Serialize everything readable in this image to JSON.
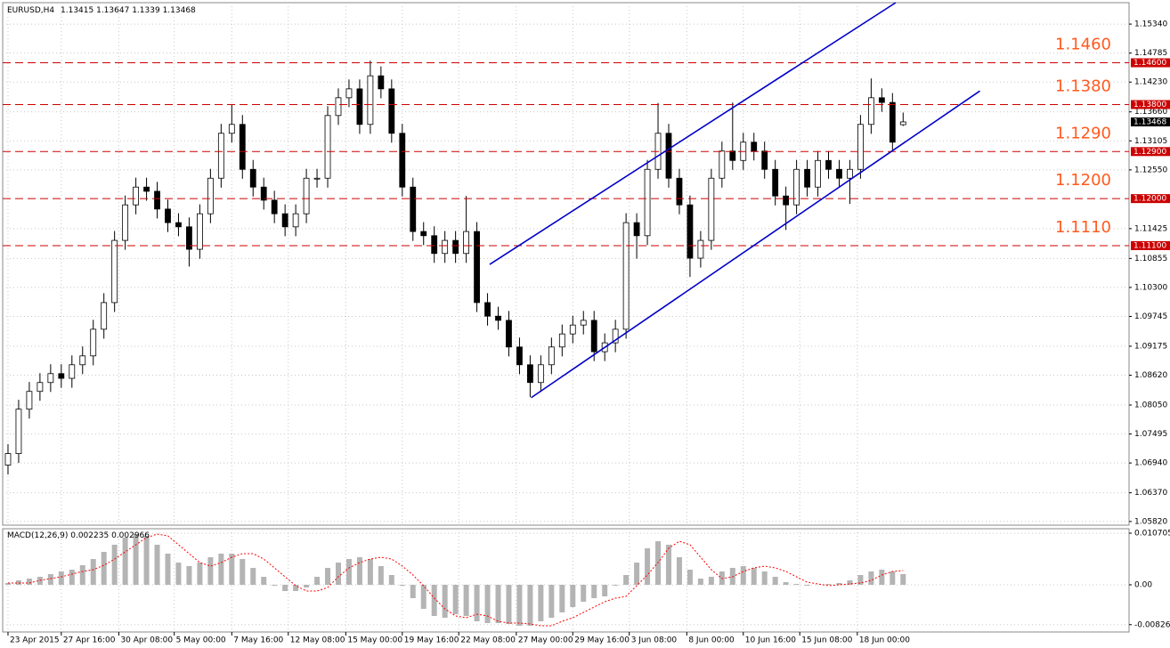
{
  "chart_data": [
    {
      "type": "candlestick",
      "title": "EURUSD,H4",
      "open": [
        1.069,
        1.0712,
        1.0797,
        1.0831,
        1.0848,
        1.0865,
        1.0856,
        1.0882,
        1.0899,
        1.095,
        1.1001,
        1.112,
        1.1188,
        1.1222,
        1.1214,
        1.118,
        1.1154,
        1.1146,
        1.1103,
        1.1171,
        1.1239,
        1.1325,
        1.1342,
        1.1256,
        1.1222,
        1.1197,
        1.1171,
        1.1146,
        1.1171,
        1.1239,
        1.1239,
        1.1359,
        1.1393,
        1.141,
        1.1342,
        1.1435,
        1.141,
        1.1325,
        1.1222,
        1.1137,
        1.1129,
        1.1095,
        1.112,
        1.1095,
        1.1137,
        1.1001,
        1.0975,
        1.0967,
        1.0916,
        1.0882,
        1.0848,
        1.0882,
        1.0916,
        1.0941,
        1.0958,
        1.0967,
        1.0907,
        1.0924,
        1.095,
        1.1154,
        1.1129,
        1.1256,
        1.1325,
        1.1239,
        1.1188,
        1.1086,
        1.112,
        1.1239,
        1.1291,
        1.1273,
        1.1308,
        1.1291,
        1.1256,
        1.1205,
        1.1188,
        1.1256,
        1.1222,
        1.1273,
        1.1256,
        1.1239,
        1.1256,
        1.1342,
        1.1393,
        1.1384,
        1.13415
      ],
      "high": [
        1.073,
        1.0815,
        1.0849,
        1.0866,
        1.0883,
        1.0883,
        1.09,
        1.0917,
        1.0968,
        1.1019,
        1.1138,
        1.1206,
        1.124,
        1.124,
        1.1232,
        1.1198,
        1.1172,
        1.1164,
        1.1189,
        1.1257,
        1.1343,
        1.138,
        1.136,
        1.1274,
        1.124,
        1.1215,
        1.1189,
        1.1189,
        1.1257,
        1.1257,
        1.1377,
        1.1411,
        1.1428,
        1.1428,
        1.1464,
        1.1453,
        1.1428,
        1.1343,
        1.124,
        1.1155,
        1.1147,
        1.1138,
        1.1138,
        1.1205,
        1.1155,
        1.1019,
        1.0993,
        1.0985,
        1.0934,
        1.09,
        1.09,
        1.0934,
        1.0959,
        1.0976,
        1.0985,
        1.0985,
        1.0942,
        1.0968,
        1.1172,
        1.1172,
        1.1274,
        1.1383,
        1.1343,
        1.1257,
        1.1206,
        1.1138,
        1.1257,
        1.1309,
        1.1384,
        1.1326,
        1.1326,
        1.1309,
        1.1274,
        1.1223,
        1.1274,
        1.1274,
        1.1291,
        1.1291,
        1.1274,
        1.1274,
        1.136,
        1.143,
        1.1411,
        1.1402,
        1.13647
      ],
      "low": [
        1.0672,
        1.0694,
        1.0779,
        1.0813,
        1.083,
        1.0838,
        1.0838,
        1.0864,
        1.0881,
        1.0932,
        1.0983,
        1.1102,
        1.117,
        1.1196,
        1.1162,
        1.1136,
        1.1128,
        1.107,
        1.1085,
        1.1153,
        1.1221,
        1.1307,
        1.1238,
        1.1204,
        1.1179,
        1.1153,
        1.1128,
        1.1128,
        1.1153,
        1.1221,
        1.1221,
        1.1341,
        1.1375,
        1.1324,
        1.1324,
        1.1392,
        1.1307,
        1.1204,
        1.1119,
        1.1111,
        1.1077,
        1.1077,
        1.1077,
        1.1077,
        1.0983,
        1.0957,
        1.0949,
        1.0898,
        1.0864,
        1.082,
        1.083,
        1.0864,
        1.0898,
        1.0923,
        1.094,
        1.0889,
        1.0889,
        1.0906,
        1.0932,
        1.1085,
        1.1111,
        1.1238,
        1.1221,
        1.117,
        1.105,
        1.1068,
        1.1102,
        1.1221,
        1.1255,
        1.1255,
        1.1273,
        1.1238,
        1.1187,
        1.114,
        1.117,
        1.1204,
        1.1204,
        1.1238,
        1.1221,
        1.119,
        1.1238,
        1.1324,
        1.1366,
        1.129,
        1.1339
      ],
      "close": [
        1.0712,
        1.0797,
        1.0831,
        1.0848,
        1.0865,
        1.0856,
        1.0882,
        1.0899,
        1.095,
        1.1001,
        1.112,
        1.1188,
        1.1222,
        1.1214,
        1.118,
        1.1154,
        1.1146,
        1.1103,
        1.1171,
        1.1239,
        1.1325,
        1.1342,
        1.1256,
        1.1222,
        1.1197,
        1.1171,
        1.1146,
        1.1171,
        1.1239,
        1.1239,
        1.1359,
        1.1393,
        1.141,
        1.1342,
        1.1435,
        1.141,
        1.1325,
        1.1222,
        1.1137,
        1.1129,
        1.1095,
        1.112,
        1.1095,
        1.1137,
        1.1001,
        1.0975,
        1.0967,
        1.0916,
        1.0882,
        1.0848,
        1.0882,
        1.0916,
        1.0941,
        1.0958,
        1.0967,
        1.0907,
        1.0924,
        1.095,
        1.1154,
        1.1129,
        1.1256,
        1.1325,
        1.1239,
        1.1188,
        1.1086,
        1.112,
        1.1239,
        1.1291,
        1.1273,
        1.1308,
        1.1291,
        1.1256,
        1.1205,
        1.1188,
        1.1256,
        1.1222,
        1.1273,
        1.1256,
        1.1239,
        1.1256,
        1.1342,
        1.1393,
        1.1384,
        1.1308,
        1.13468
      ],
      "color": "#000000",
      "xlim": [
        -0.5,
        105.2
      ],
      "xticks": [
        {
          "value": 0,
          "label": "23 Apr 2015"
        },
        {
          "value": 5,
          "label": "27 Apr 16:00"
        },
        {
          "value": 10.4,
          "label": "30 Apr 08:00"
        },
        {
          "value": 15.6,
          "label": "5 May 00:00"
        },
        {
          "value": 21,
          "label": "7 May 16:00"
        },
        {
          "value": 26.3,
          "label": "12 May 08:00"
        },
        {
          "value": 31.7,
          "label": "15 May 00:00"
        },
        {
          "value": 37,
          "label": "19 May 16:00"
        },
        {
          "value": 42.3,
          "label": "22 May 08:00"
        },
        {
          "value": 47.7,
          "label": "27 May 00:00"
        },
        {
          "value": 53,
          "label": "29 May 16:00"
        },
        {
          "value": 58.3,
          "label": "3 Jun 08:00"
        },
        {
          "value": 63.7,
          "label": "8 Jun 00:00"
        },
        {
          "value": 69,
          "label": "10 Jun 16:00"
        },
        {
          "value": 74.3,
          "label": "15 Jun 08:00"
        },
        {
          "value": 79.7,
          "label": "18 Jun 00:00"
        }
      ],
      "ylim": [
        1.0575,
        1.1575
      ],
      "yticks": [
        {
          "value": 1.1534,
          "label": "1.15340"
        },
        1.14785,
        {
          "value": 1.1423,
          "label": "1.14230"
        },
        {
          "value": 1.1366,
          "label": "1.13660"
        },
        1.13105,
        {
          "value": 1.1255,
          "label": "1.12550"
        },
        1.11425,
        1.10855,
        {
          "value": 1.103,
          "label": "1.10300"
        },
        1.09745,
        1.09175,
        {
          "value": 1.0862,
          "label": "1.08620"
        },
        {
          "value": 1.0805,
          "label": "1.08050"
        },
        1.07495,
        {
          "value": 1.0694,
          "label": "1.06940"
        },
        {
          "value": 1.0637,
          "label": "1.06370"
        },
        {
          "value": 1.0582,
          "label": "1.05820"
        }
      ],
      "grid": true,
      "levels": [
        {
          "value": 1.146,
          "label": "1.1460",
          "axis_label": "1.14600"
        },
        {
          "value": 1.138,
          "label": "1.1380",
          "axis_label": "1.13800"
        },
        {
          "value": 1.129,
          "label": "1.1290",
          "axis_label": "1.12900"
        },
        {
          "value": 1.12,
          "label": "1.1200",
          "axis_label": "1.12000"
        },
        {
          "value": 1.111,
          "label": "1.1110",
          "axis_label": "1.11100"
        }
      ],
      "level_color": "#cc0000",
      "trendlines": [
        {
          "x": [
            45.2,
            83.3
          ],
          "y": [
            1.1074,
            1.1575
          ]
        },
        {
          "x": [
            49.1,
            91.2
          ],
          "y": [
            1.0819,
            1.1406
          ]
        }
      ],
      "trendline_color": "#0000c8"
    },
    {
      "type": "macd",
      "title": "MACD(12,26,9)",
      "series": [
        {
          "color": "#b4b4b4",
          "values": [
            0.00037,
            0.00092,
            0.00129,
            0.00166,
            0.00221,
            0.00277,
            0.00314,
            0.00406,
            0.00535,
            0.00683,
            0.00831,
            0.00978,
            0.01052,
            0.01015,
            0.00831,
            0.00646,
            0.00461,
            0.00388,
            0.00461,
            0.00572,
            0.00646,
            0.00646,
            0.00535,
            0.00351,
            0.00166,
            -0.00018,
            -0.00129,
            -0.00129,
            -0.00055,
            0.00166,
            0.00351,
            0.00461,
            0.00535,
            0.00572,
            0.00535,
            0.00388,
            0.00203,
            -0.00018,
            -0.00277,
            -0.00498,
            -0.00646,
            -0.00683,
            -0.00609,
            -0.00646,
            -0.00757,
            -0.00794,
            -0.00794,
            -0.00812,
            -0.00849,
            -0.00849,
            -0.00757,
            -0.00683,
            -0.00572,
            -0.00461,
            -0.00351,
            -0.00277,
            -0.0024,
            -0.00018,
            0.00203,
            0.00461,
            0.00757,
            0.00904,
            0.00831,
            0.00572,
            0.00314,
            0.00129,
            0.00166,
            0.00277,
            0.00351,
            0.00388,
            0.00351,
            0.00277,
            0.00166,
            0.00055,
            0.00018,
            -0.00018,
            0,
            0.00018,
            0.00037,
            0.00092,
            0.00203,
            0.00277,
            0.00314,
            0.00277,
            0.002235
          ]
        },
        {
          "color": "#ff0000",
          "values": [
            0.00037,
            0.00037,
            0.00037,
            0.00092,
            0.00129,
            0.00166,
            0.00221,
            0.00277,
            0.00314,
            0.00406,
            0.00535,
            0.00683,
            0.00831,
            0.00978,
            0.01052,
            0.01015,
            0.00831,
            0.00646,
            0.00461,
            0.00388,
            0.00461,
            0.00572,
            0.00646,
            0.00646,
            0.00535,
            0.00351,
            0.00166,
            -0.00018,
            -0.00129,
            -0.00129,
            -0.00055,
            0.00166,
            0.00351,
            0.00461,
            0.00535,
            0.00572,
            0.00535,
            0.00388,
            0.00203,
            -0.00018,
            -0.00277,
            -0.00498,
            -0.00646,
            -0.00683,
            -0.00609,
            -0.00646,
            -0.00757,
            -0.00794,
            -0.00794,
            -0.00812,
            -0.00849,
            -0.00849,
            -0.00757,
            -0.00683,
            -0.00572,
            -0.00461,
            -0.00351,
            -0.00277,
            -0.0024,
            -0.00018,
            0.00203,
            0.00461,
            0.00757,
            0.00904,
            0.00831,
            0.00572,
            0.00314,
            0.00129,
            0.00166,
            0.00277,
            0.00351,
            0.00388,
            0.00351,
            0.00277,
            0.00166,
            0.00055,
            0.00018,
            -0.00018,
            0,
            0.00018,
            0.00037,
            0.00092,
            0.00203,
            0.00277,
            0.002966
          ]
        }
      ],
      "ylim": [
        -0.00978,
        0.01163
      ],
      "yticks": [
        0.010705,
        {
          "value": 0,
          "label": "0.00"
        },
        -0.00826
      ]
    }
  ]
}
